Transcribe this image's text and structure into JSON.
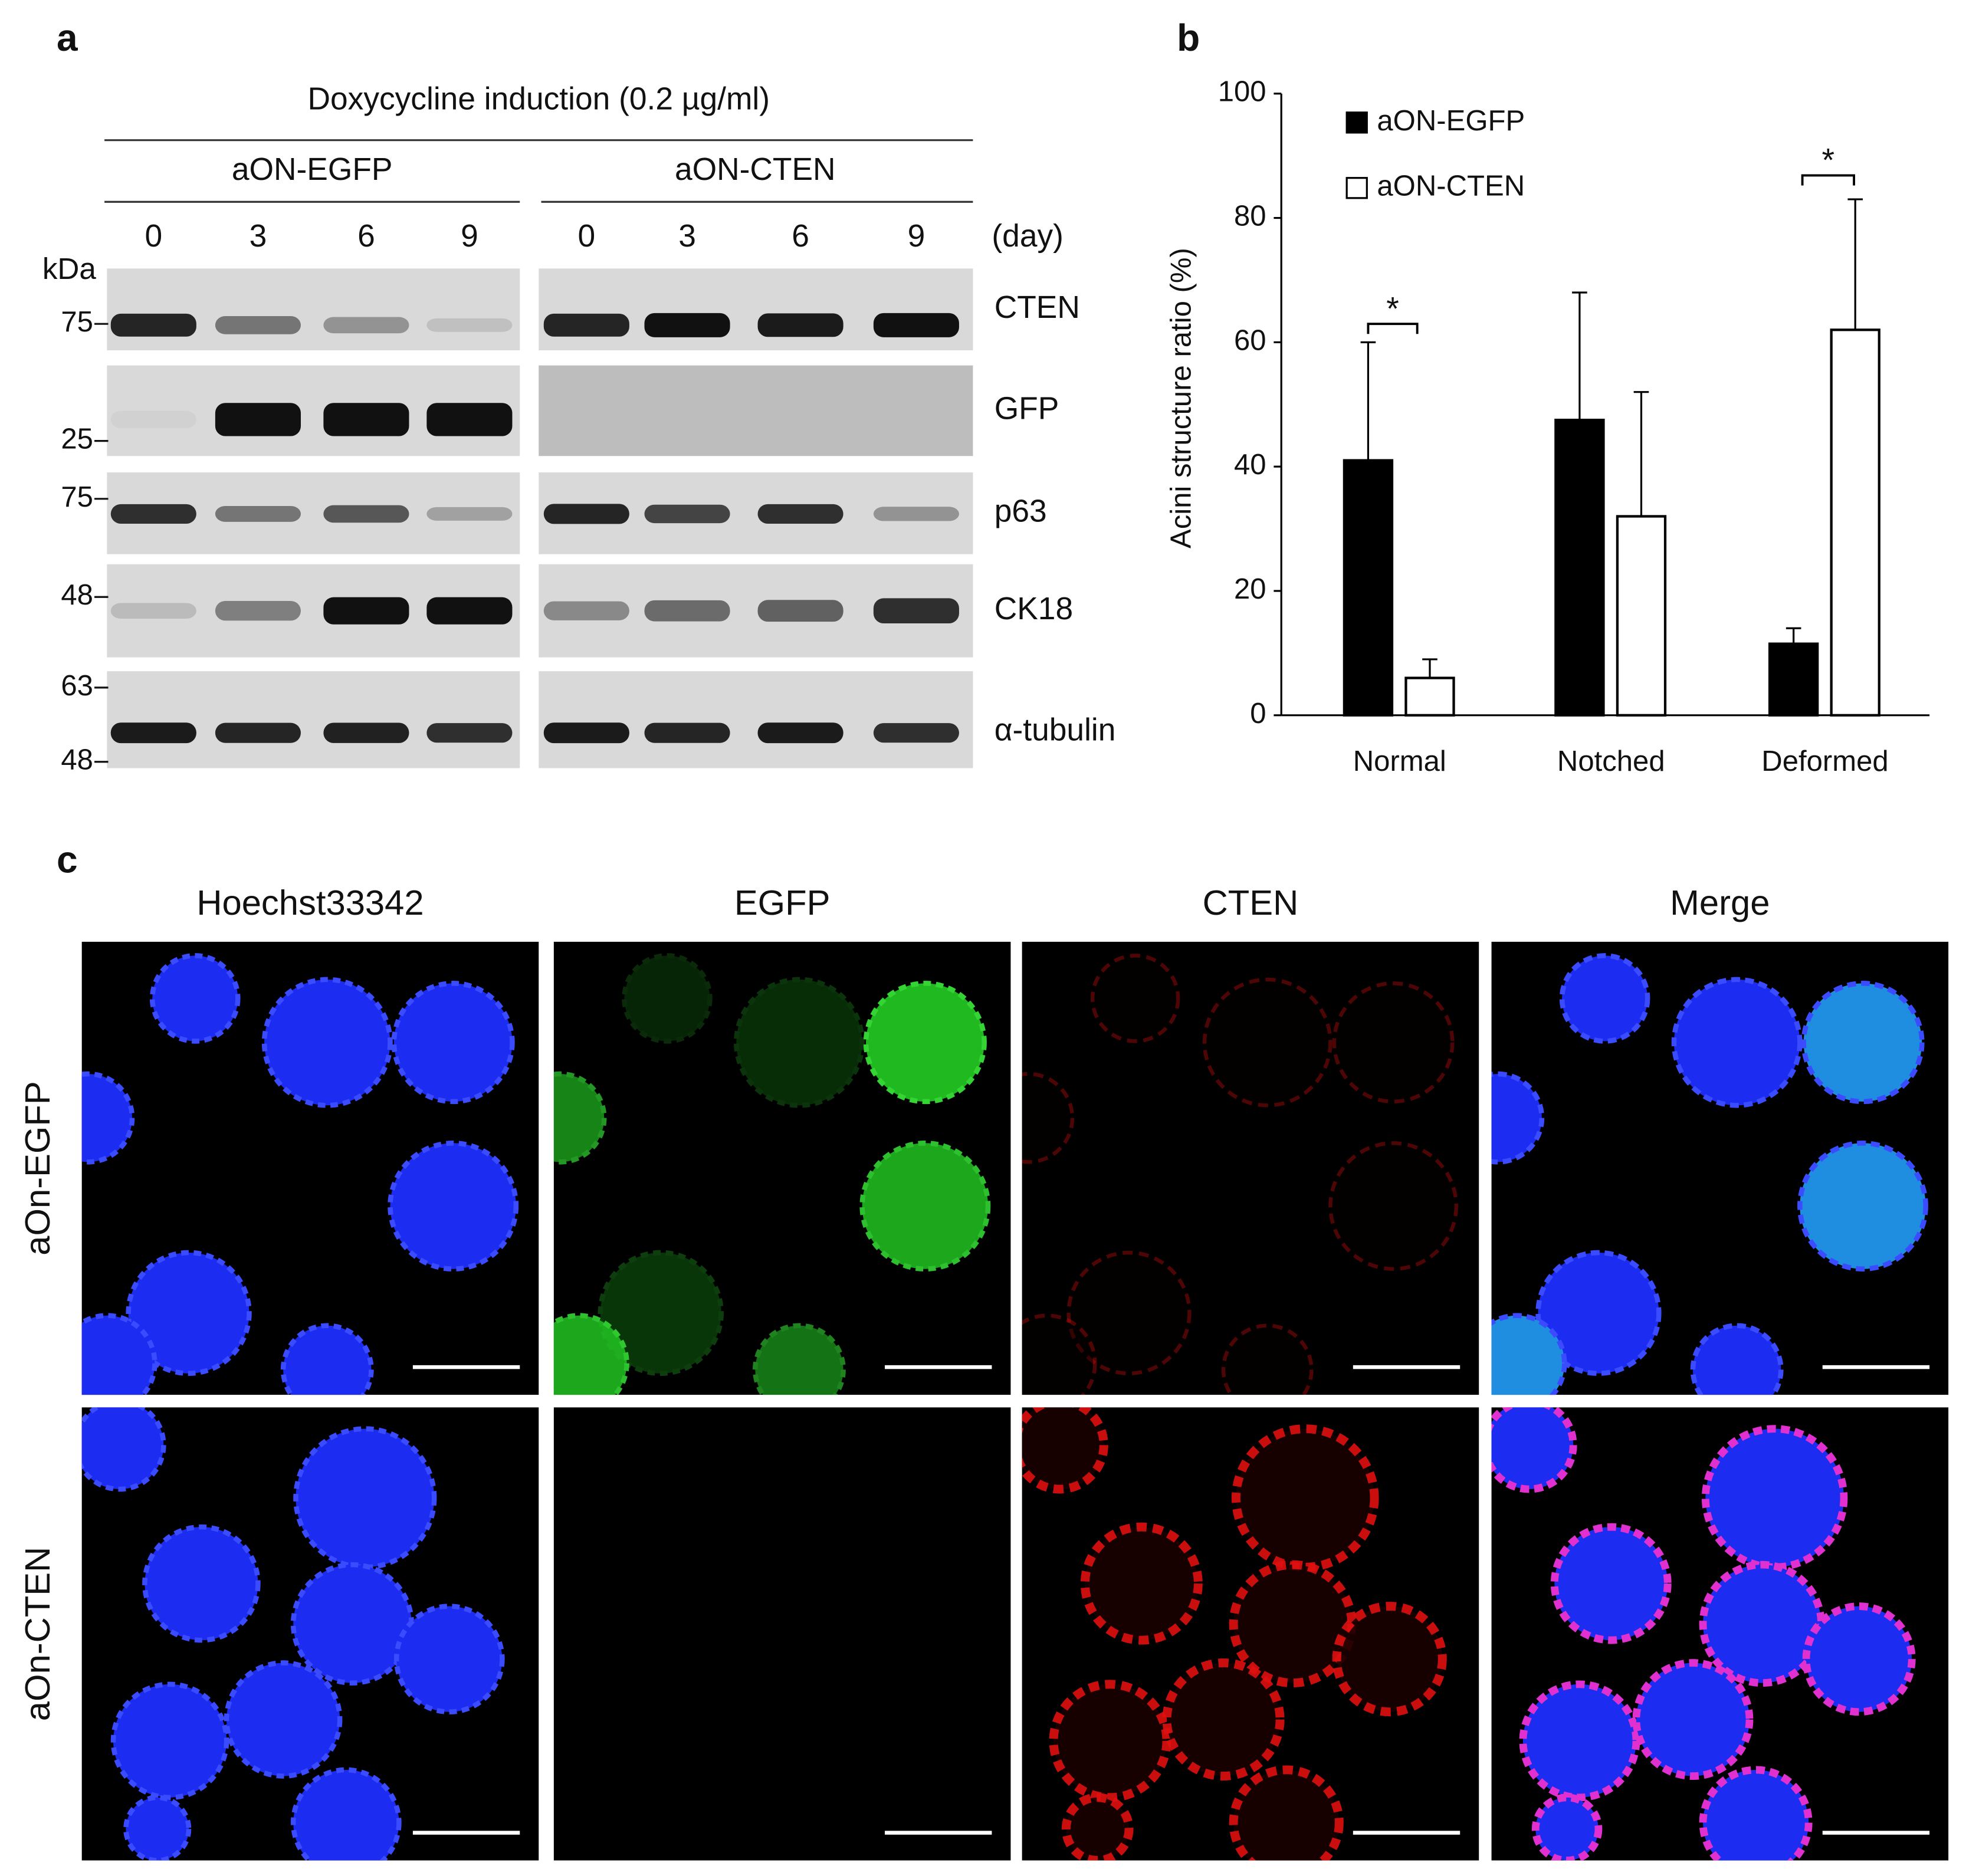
{
  "panel_a": {
    "label": "a",
    "title": "Doxycycline induction (0.2 µg/ml)",
    "groups": [
      "aON-EGFP",
      "aON-CTEN"
    ],
    "days": [
      "0",
      "3",
      "6",
      "9"
    ],
    "day_unit": "(day)",
    "mw_unit": "kDa",
    "mw_markers": [
      "75",
      "25",
      "75",
      "48",
      "63",
      "48"
    ],
    "proteins": [
      "CTEN",
      "GFP",
      "p63",
      "CK18",
      "α-tubulin"
    ]
  },
  "chart_data": {
    "type": "bar",
    "label": "b",
    "y_label": "Acini structure ratio (%)",
    "categories": [
      "Normal",
      "Notched",
      "Deformed"
    ],
    "series": [
      {
        "name": "aON-EGFP",
        "color": "#000000",
        "values": [
          41,
          47.5,
          11.5
        ],
        "errors": [
          19,
          20.5,
          2.5
        ]
      },
      {
        "name": "aON-CTEN",
        "color": "#ffffff",
        "values": [
          6,
          32,
          62
        ],
        "errors": [
          3,
          20,
          21
        ]
      }
    ],
    "ylim": [
      0,
      100
    ],
    "yticks": [
      0,
      20,
      40,
      60,
      80,
      100
    ],
    "legend": "top-left",
    "grid": false,
    "significance": [
      "*",
      "*"
    ]
  },
  "panel_c": {
    "label": "c",
    "channels": [
      "Hoechst33342",
      "EGFP",
      "CTEN",
      "Merge"
    ],
    "rows": [
      "aOn-EGFP",
      "aOn-CTEN"
    ]
  }
}
